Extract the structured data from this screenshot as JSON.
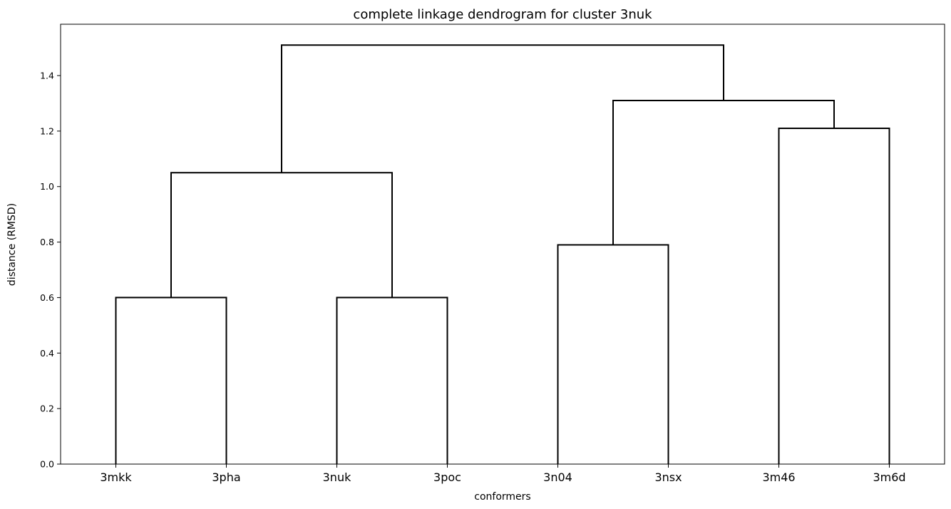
{
  "chart_data": {
    "type": "dendrogram",
    "title": "complete linkage dendrogram for cluster 3nuk",
    "xlabel": "conformers",
    "ylabel": "distance (RMSD)",
    "leaves": [
      "3mkk",
      "3pha",
      "3nuk",
      "3poc",
      "3n04",
      "3nsx",
      "3m46",
      "3m6d"
    ],
    "merges": [
      {
        "left": "leaf:0",
        "right": "leaf:1",
        "height": 0.6
      },
      {
        "left": "leaf:2",
        "right": "leaf:3",
        "height": 0.6
      },
      {
        "left": "leaf:4",
        "right": "leaf:5",
        "height": 0.79
      },
      {
        "left": "leaf:6",
        "right": "leaf:7",
        "height": 1.21
      },
      {
        "left": "node:0",
        "right": "node:1",
        "height": 1.05
      },
      {
        "left": "node:2",
        "right": "node:3",
        "height": 1.31
      },
      {
        "left": "node:4",
        "right": "node:5",
        "height": 1.51
      }
    ],
    "yticks": [
      0.0,
      0.2,
      0.4,
      0.6,
      0.8,
      1.0,
      1.2,
      1.4
    ],
    "ytick_labels": [
      "0.0",
      "0.2",
      "0.4",
      "0.6",
      "0.8",
      "1.0",
      "1.2",
      "1.4"
    ],
    "ylim": [
      0,
      1.585
    ],
    "grid": false,
    "line_color": "#000000"
  }
}
